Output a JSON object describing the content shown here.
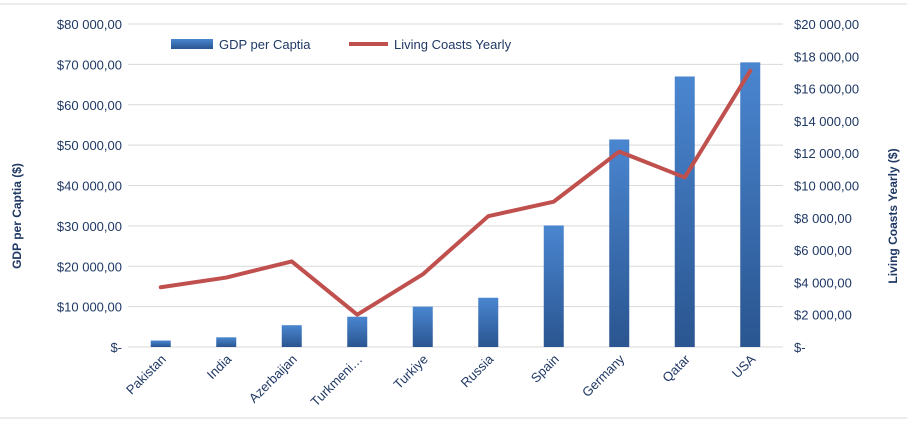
{
  "chart_data": {
    "type": "bar",
    "categories": [
      "Pakistan",
      "India",
      "Azerbaijan",
      "Turkmeni…",
      "Turkiye",
      "Russia",
      "Spain",
      "Germany",
      "Qatar",
      "USA"
    ],
    "series": [
      {
        "name": "GDP per Captia",
        "type": "bar",
        "axis": "left",
        "color": "#2e5c9a",
        "values": [
          1600,
          2400,
          5400,
          7500,
          10000,
          12200,
          30100,
          51400,
          67000,
          70500
        ]
      },
      {
        "name": "Living Coasts Yearly",
        "type": "line",
        "axis": "right",
        "color": "#c0504d",
        "values": [
          3700,
          4300,
          5300,
          2000,
          4500,
          8100,
          9000,
          12100,
          10500,
          17100
        ]
      }
    ],
    "ylabel": "GDP per Captia ($)",
    "y2label": "Living Coasts Yearly ($)",
    "ylim": [
      0,
      80000
    ],
    "y2lim": [
      0,
      20000
    ],
    "yticks": [
      "$-",
      "$10 000,00",
      "$20 000,00",
      "$30 000,00",
      "$40 000,00",
      "$50 000,00",
      "$60 000,00",
      "$70 000,00",
      "$80 000,00"
    ],
    "y2ticks": [
      "$-",
      "$2 000,00",
      "$4 000,00",
      "$6 000,00",
      "$8 000,00",
      "$10 000,00",
      "$12 000,00",
      "$14 000,00",
      "$16 000,00",
      "$18 000,00",
      "$20 000,00"
    ],
    "grid": true,
    "legend_position": "top-left"
  }
}
